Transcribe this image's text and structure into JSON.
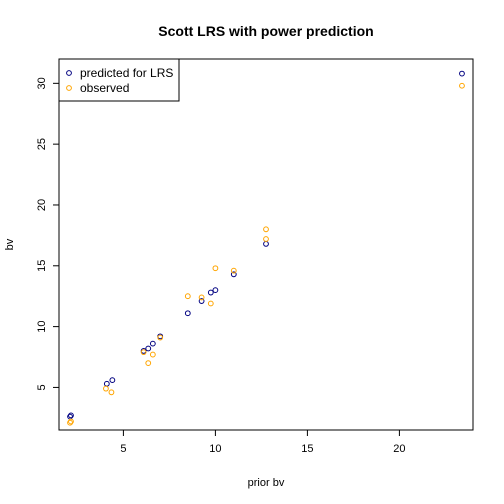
{
  "chart_data": {
    "type": "scatter",
    "title": "Scott LRS with power prediction",
    "xlabel": "prior bv",
    "ylabel": "bv",
    "xlim": [
      1.5,
      24
    ],
    "ylim": [
      1.5,
      32
    ],
    "xticks": [
      5,
      10,
      15,
      20
    ],
    "yticks": [
      5,
      10,
      15,
      20,
      25,
      30
    ],
    "grid": false,
    "legend_position": "top-left",
    "series": [
      {
        "name": "predicted for LRS",
        "color": "#000080",
        "marker": "open-circle",
        "points": [
          {
            "x": 2.1,
            "y": 2.6
          },
          {
            "x": 2.15,
            "y": 2.7
          },
          {
            "x": 4.1,
            "y": 5.3
          },
          {
            "x": 4.4,
            "y": 5.6
          },
          {
            "x": 6.1,
            "y": 8.0
          },
          {
            "x": 6.35,
            "y": 8.2
          },
          {
            "x": 6.6,
            "y": 8.6
          },
          {
            "x": 7.0,
            "y": 9.2
          },
          {
            "x": 8.5,
            "y": 11.1
          },
          {
            "x": 9.25,
            "y": 12.1
          },
          {
            "x": 9.75,
            "y": 12.8
          },
          {
            "x": 10.0,
            "y": 13.0
          },
          {
            "x": 11.0,
            "y": 14.3
          },
          {
            "x": 12.75,
            "y": 16.8
          },
          {
            "x": 23.4,
            "y": 30.8
          }
        ]
      },
      {
        "name": "observed",
        "color": "#ffa500",
        "marker": "open-circle",
        "points": [
          {
            "x": 2.1,
            "y": 2.1
          },
          {
            "x": 2.15,
            "y": 2.2
          },
          {
            "x": 4.05,
            "y": 4.9
          },
          {
            "x": 4.35,
            "y": 4.6
          },
          {
            "x": 6.1,
            "y": 7.9
          },
          {
            "x": 6.35,
            "y": 7.0
          },
          {
            "x": 6.6,
            "y": 7.7
          },
          {
            "x": 7.0,
            "y": 9.1
          },
          {
            "x": 8.5,
            "y": 12.5
          },
          {
            "x": 9.25,
            "y": 12.4
          },
          {
            "x": 9.75,
            "y": 11.9
          },
          {
            "x": 10.0,
            "y": 14.8
          },
          {
            "x": 11.0,
            "y": 14.6
          },
          {
            "x": 12.75,
            "y": 18.0
          },
          {
            "x": 12.75,
            "y": 17.2
          },
          {
            "x": 23.4,
            "y": 29.8
          }
        ]
      }
    ]
  }
}
